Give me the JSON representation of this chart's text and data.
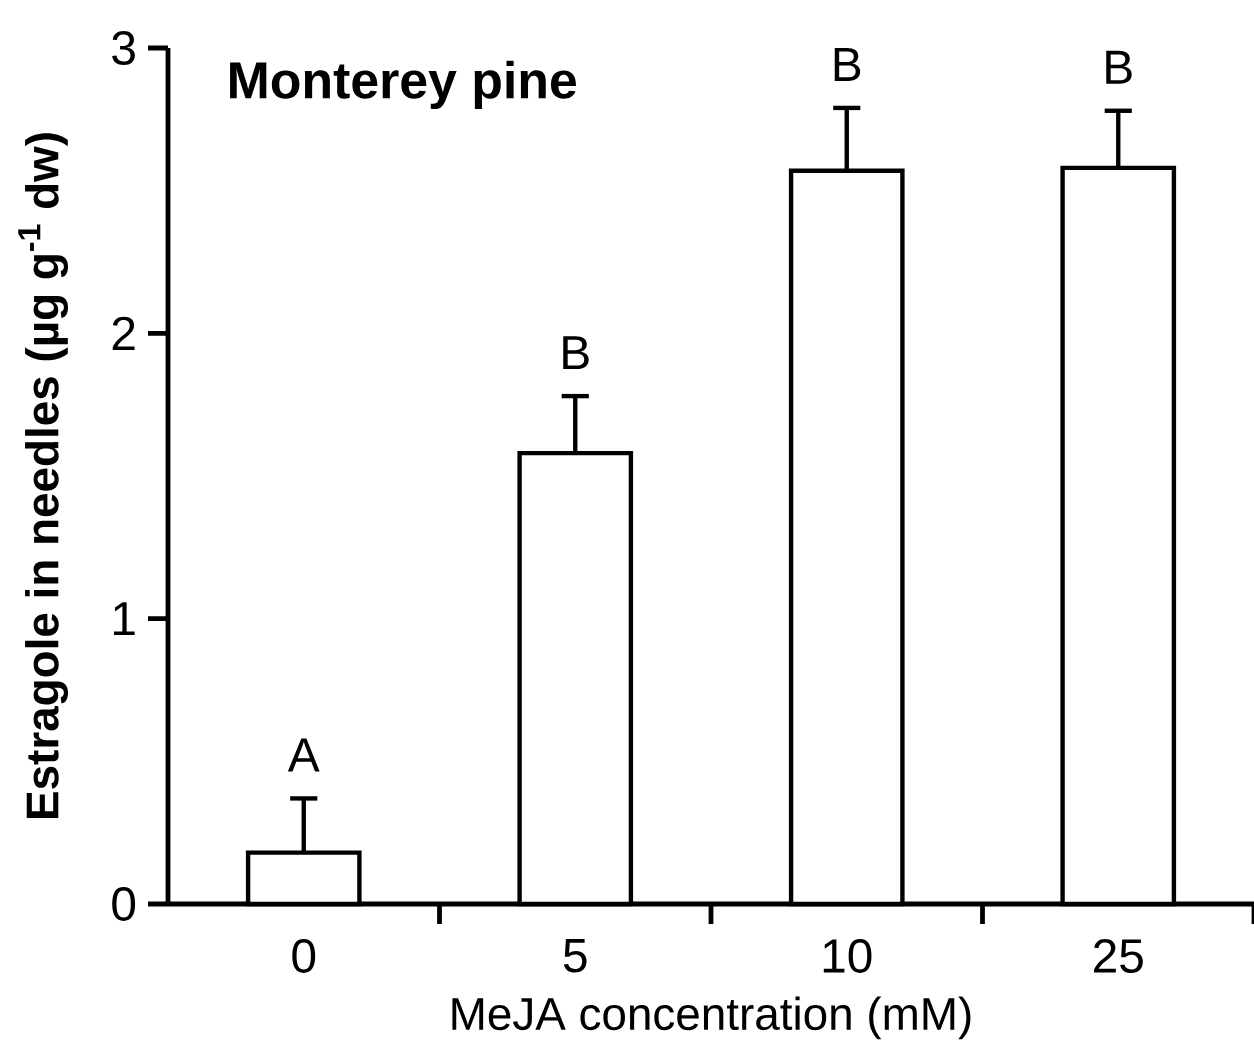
{
  "chart_data": {
    "type": "bar",
    "title": "Monterey pine",
    "xlabel": "MeJA concentration (mM)",
    "ylabel": "Estragole in needles  (µg g$^{-1}$ dw)",
    "categories": [
      "0",
      "5",
      "10",
      "25"
    ],
    "values": [
      0.18,
      1.58,
      2.57,
      2.58
    ],
    "errors": [
      [
        0.18,
        0.37
      ],
      [
        1.58,
        1.78
      ],
      [
        2.57,
        2.79
      ],
      [
        2.58,
        2.78
      ]
    ],
    "color": "#ffffff",
    "ylim": [
      0,
      3
    ],
    "yticks": [
      0,
      1,
      2,
      3
    ],
    "grid": false,
    "annotations": [
      "A",
      "B",
      "B",
      "B"
    ]
  }
}
